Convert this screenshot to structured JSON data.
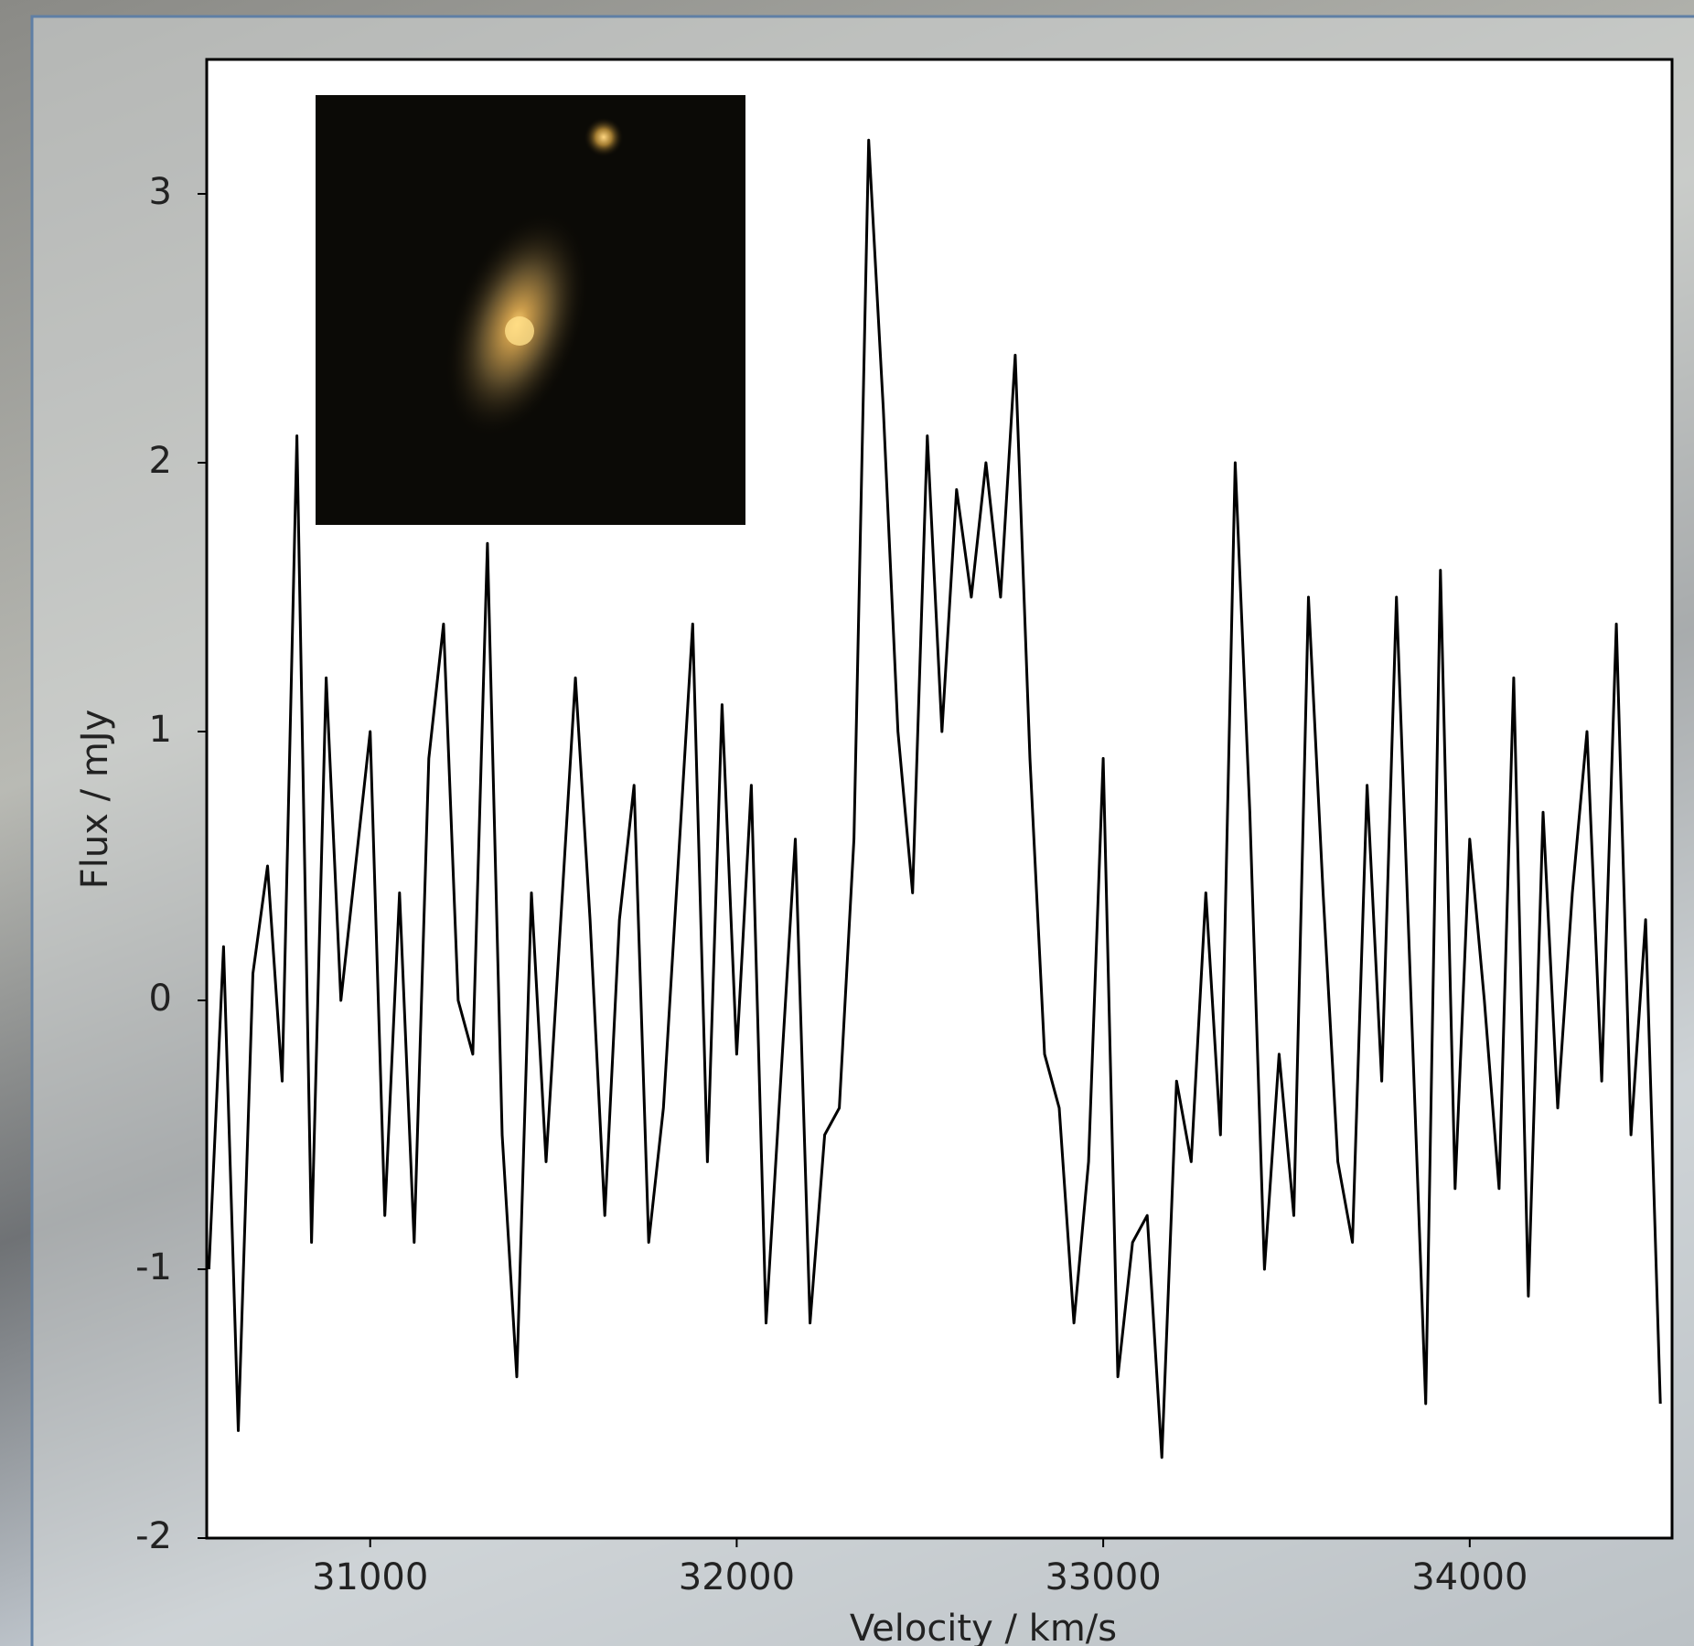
{
  "chart_data": {
    "type": "line",
    "xlabel": "Velocity / km/s",
    "ylabel": "Flux / mJy",
    "color": "#000000",
    "xlim": [
      30554,
      34552
    ],
    "ylim": [
      -2,
      3.5
    ],
    "xticks": [
      31000,
      32000,
      33000,
      34000
    ],
    "yticks": [
      -2,
      -1,
      0,
      1,
      2,
      3
    ],
    "x": [
      30560,
      30600,
      30640,
      30680,
      30720,
      30760,
      30800,
      30840,
      30880,
      30920,
      30960,
      31000,
      31040,
      31080,
      31120,
      31160,
      31200,
      31240,
      31280,
      31320,
      31360,
      31400,
      31440,
      31480,
      31520,
      31560,
      31600,
      31640,
      31680,
      31720,
      31760,
      31800,
      31840,
      31880,
      31920,
      31960,
      32000,
      32040,
      32080,
      32120,
      32160,
      32200,
      32240,
      32280,
      32320,
      32360,
      32400,
      32440,
      32480,
      32520,
      32560,
      32600,
      32640,
      32680,
      32720,
      32760,
      32800,
      32840,
      32880,
      32920,
      32960,
      33000,
      33040,
      33080,
      33120,
      33160,
      33200,
      33240,
      33280,
      33320,
      33360,
      33400,
      33440,
      33480,
      33520,
      33560,
      33600,
      33640,
      33680,
      33720,
      33760,
      33800,
      33840,
      33880,
      33920,
      33960,
      34000,
      34040,
      34080,
      34120,
      34160,
      34200,
      34240,
      34280,
      34320,
      34360,
      34400,
      34440,
      34480,
      34520
    ],
    "values": [
      -1.0,
      0.2,
      -1.6,
      0.1,
      0.5,
      -0.3,
      2.1,
      -0.9,
      1.2,
      0.0,
      0.5,
      1.0,
      -0.8,
      0.4,
      -0.9,
      0.9,
      1.4,
      0.0,
      -0.2,
      1.7,
      -0.5,
      -1.4,
      0.4,
      -0.6,
      0.3,
      1.2,
      0.3,
      -0.8,
      0.3,
      0.8,
      -0.9,
      -0.4,
      0.5,
      1.4,
      -0.6,
      1.1,
      -0.2,
      0.8,
      -1.2,
      -0.3,
      0.6,
      -1.2,
      -0.5,
      -0.4,
      0.6,
      3.2,
      2.2,
      1.0,
      0.4,
      2.1,
      1.0,
      1.9,
      1.5,
      2.0,
      1.5,
      2.4,
      0.9,
      -0.2,
      -0.4,
      -1.2,
      -0.6,
      0.9,
      -1.4,
      -0.9,
      -0.8,
      -1.7,
      -0.3,
      -0.6,
      0.4,
      -0.5,
      2.0,
      0.7,
      -1.0,
      -0.2,
      -0.8,
      1.5,
      0.4,
      -0.6,
      -0.9,
      0.8,
      -0.3,
      1.5,
      0.0,
      -1.5,
      1.6,
      -0.7,
      0.6,
      0.0,
      -0.7,
      1.2,
      -1.1,
      0.7,
      -0.4,
      0.4,
      1.0,
      -0.3,
      1.4,
      -0.5,
      0.3,
      -1.5
    ]
  }
}
